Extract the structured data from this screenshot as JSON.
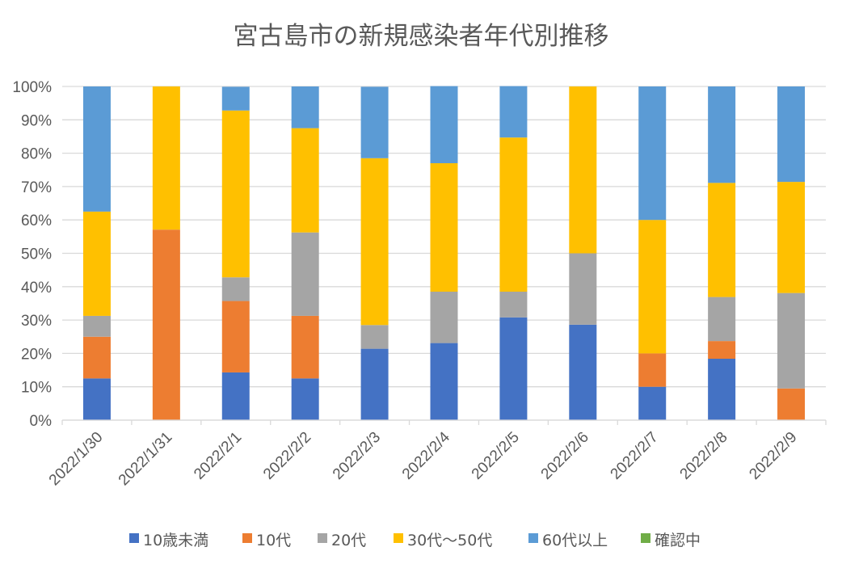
{
  "chart_data": {
    "type": "bar",
    "stacked": "percent",
    "title": "宮古島市の新規感染者年代別推移",
    "xlabel": "",
    "ylabel": "",
    "ylim": [
      0,
      100
    ],
    "yticks": [
      "0%",
      "10%",
      "20%",
      "30%",
      "40%",
      "50%",
      "60%",
      "70%",
      "80%",
      "90%",
      "100%"
    ],
    "grid": true,
    "legend_position": "bottom",
    "categories": [
      "2022/1/30",
      "2022/1/31",
      "2022/2/1",
      "2022/2/2",
      "2022/2/3",
      "2022/2/4",
      "2022/2/5",
      "2022/2/6",
      "2022/2/7",
      "2022/2/8",
      "2022/2/9"
    ],
    "series": [
      {
        "name": "10歳未満",
        "color": "#4472C4",
        "values": [
          12.5,
          0,
          14.3,
          12.5,
          21.4,
          23.1,
          30.8,
          28.6,
          10,
          18.4,
          0
        ]
      },
      {
        "name": "10代",
        "color": "#ED7D31",
        "values": [
          12.5,
          57.1,
          21.4,
          18.75,
          0,
          0,
          0,
          0,
          10,
          5.3,
          9.5
        ]
      },
      {
        "name": "20代",
        "color": "#A5A5A5",
        "values": [
          6.25,
          0,
          7.1,
          25,
          7.1,
          15.4,
          7.7,
          21.4,
          0,
          13.2,
          28.6
        ]
      },
      {
        "name": "30代～50代",
        "color": "#FFC000",
        "values": [
          31.25,
          42.9,
          50,
          31.25,
          50,
          38.5,
          46.2,
          50,
          40,
          34.2,
          33.3
        ]
      },
      {
        "name": "60代以上",
        "color": "#5B9BD5",
        "values": [
          37.5,
          0,
          7.1,
          12.5,
          21.4,
          23.1,
          15.4,
          0,
          40,
          28.9,
          28.6
        ]
      },
      {
        "name": "確認中",
        "color": "#70AD47",
        "values": [
          0,
          0,
          0,
          0,
          0,
          0,
          0,
          0,
          0,
          0,
          0
        ]
      }
    ]
  }
}
